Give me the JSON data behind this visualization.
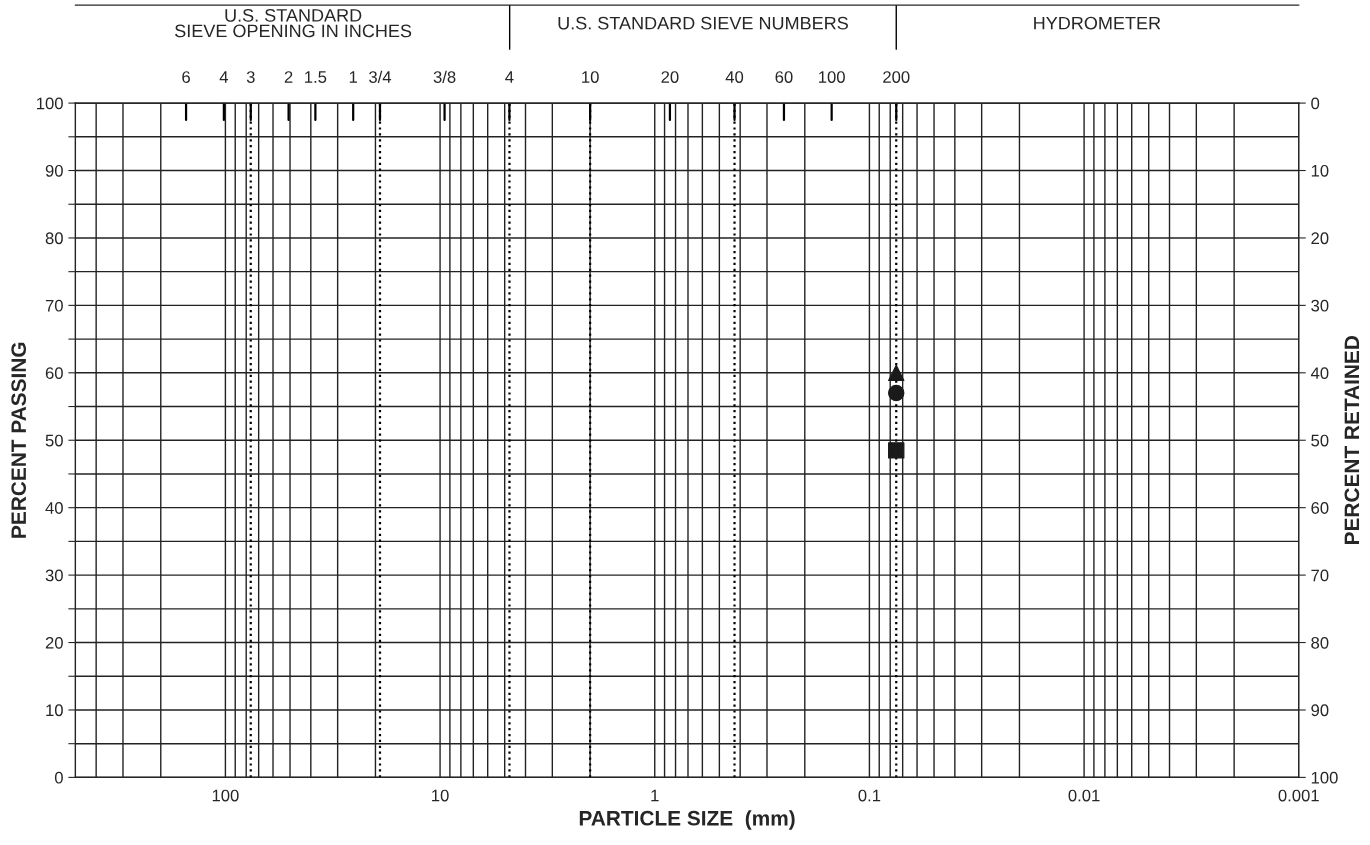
{
  "chart_data": {
    "type": "scatter",
    "xlabel": "PARTICLE SIZE  (mm)",
    "ylabel": "PERCENT PASSING",
    "y2label": "PERCENT RETAINED",
    "annotations": [
      "U.S. STANDARD\nSIEVE OPENING IN INCHES",
      "U.S. STANDARD SIEVE NUMBERS",
      "HYDROMETER",
      "6",
      "4",
      "3",
      "2",
      "1.5",
      "1",
      "3/4",
      "3/8",
      "4",
      "10",
      "20",
      "40",
      "60",
      "100",
      "200"
    ],
    "log": "x",
    "xlim": [
      500,
      0.001
    ],
    "xticks": [
      100,
      10,
      1,
      0.1,
      0.01,
      0.001
    ],
    "ylim": [
      0,
      100
    ],
    "yticks": [
      0,
      {
        "value": 5,
        "label": null
      },
      10,
      {
        "value": 15,
        "label": null
      },
      20,
      {
        "value": 25,
        "label": null
      },
      30,
      {
        "value": 35,
        "label": null
      },
      40,
      {
        "value": 45,
        "label": null
      },
      50,
      {
        "value": 55,
        "label": null
      },
      60,
      {
        "value": 65,
        "label": null
      },
      70,
      {
        "value": 75,
        "label": null
      },
      80,
      {
        "value": 85,
        "label": null
      },
      90,
      {
        "value": 95,
        "label": null
      },
      100
    ],
    "y2lim": [
      100,
      0
    ],
    "y2ticks": [
      0,
      10,
      20,
      30,
      40,
      50,
      60,
      70,
      80,
      90,
      100
    ],
    "grid": true,
    "ref_lines": [
      {
        "axis": "x",
        "value": 76.2,
        "line_style": "dotted",
        "color": "#000000"
      },
      {
        "axis": "x",
        "value": 19.05,
        "line_style": "dotted",
        "color": "#000000"
      },
      {
        "axis": "x",
        "value": 4.75,
        "line_style": "dotted",
        "color": "#000000"
      },
      {
        "axis": "x",
        "value": 2.0,
        "line_style": "dotted",
        "color": "#000000"
      },
      {
        "axis": "x",
        "value": 0.425,
        "line_style": "dotted",
        "color": "#000000"
      },
      {
        "axis": "x",
        "value": 0.075,
        "line_style": "dotted",
        "color": "#000000"
      }
    ],
    "x": [
      0.075
    ],
    "series": [
      {
        "marker": "triangle",
        "color": "#1a1a1a",
        "values": [
          60
        ]
      },
      {
        "marker": "circle",
        "color": "#1a1a1a",
        "values": [
          57
        ]
      },
      {
        "marker": "square",
        "color": "#1a1a1a",
        "values": [
          48.5
        ]
      }
    ]
  }
}
